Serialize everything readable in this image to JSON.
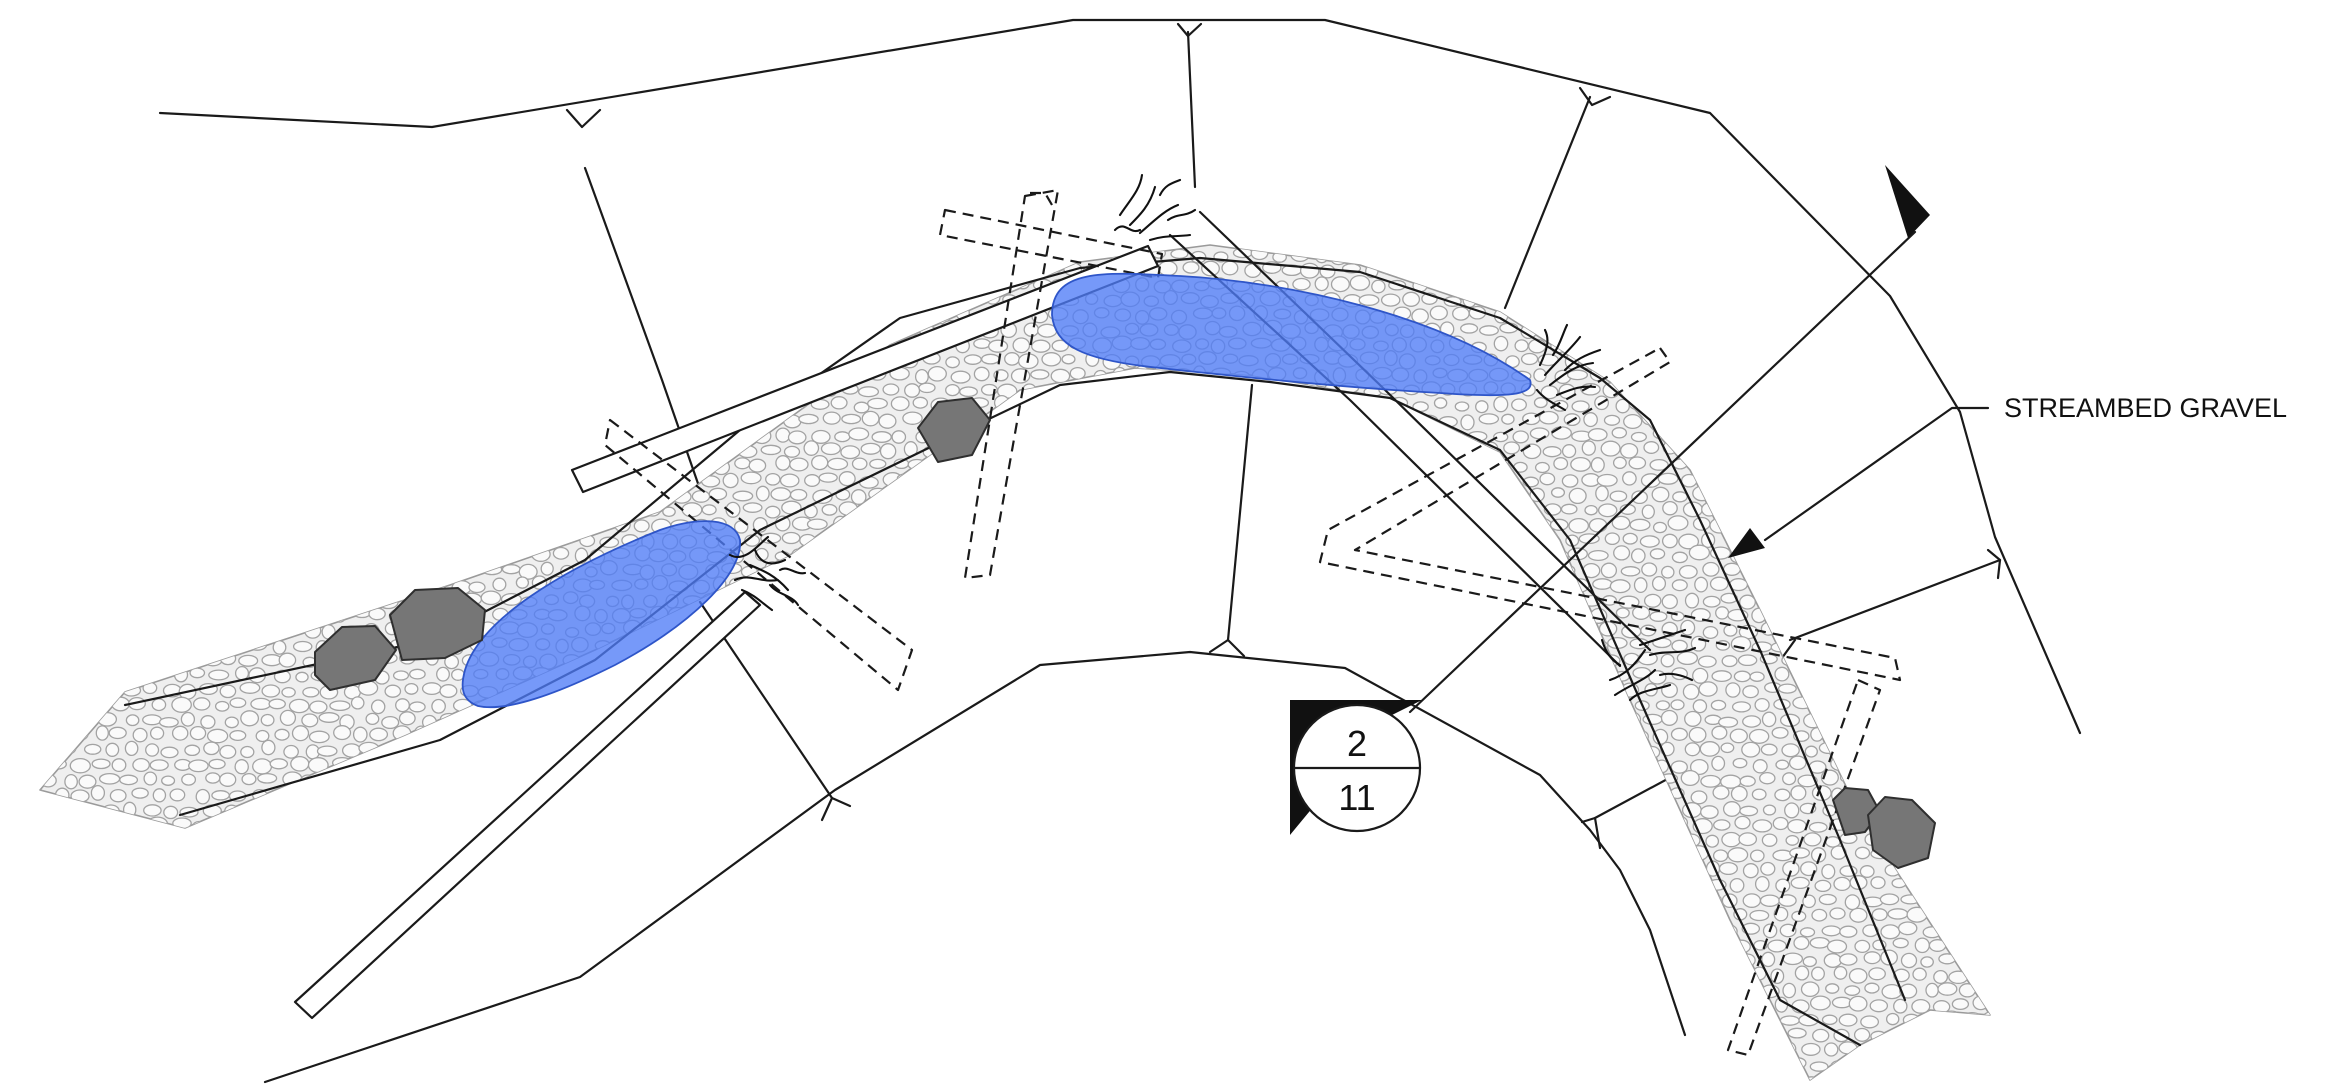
{
  "callout": {
    "label": "STREAMBED GRAVEL"
  },
  "section_marker": {
    "section": "2",
    "sheet": "11"
  },
  "colors": {
    "water": "#4f7cf7",
    "boulder": "#767676",
    "gravel_fill": "#efefef",
    "linework": "#1a1a1a"
  }
}
